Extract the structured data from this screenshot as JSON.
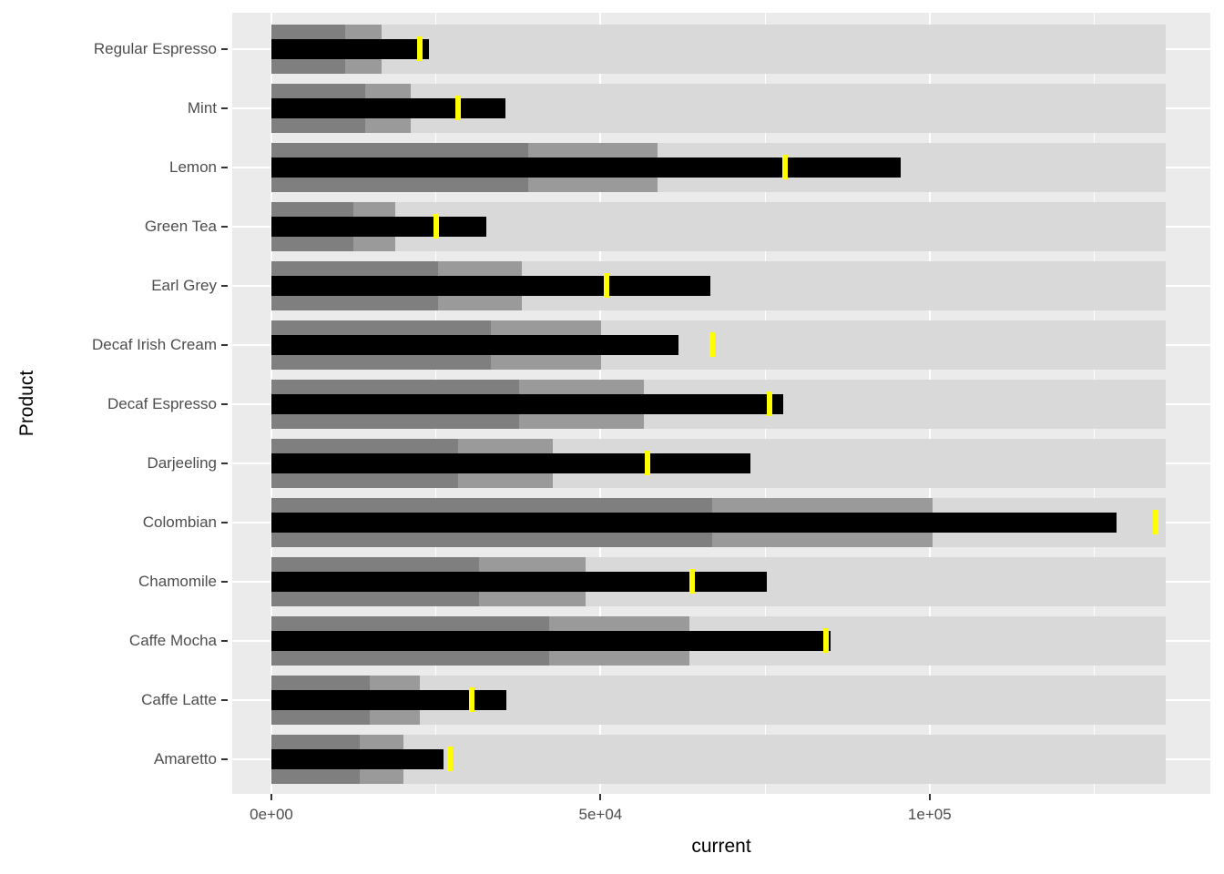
{
  "figure": {
    "kind": "bullet-chart",
    "background": "#ffffff"
  },
  "colors": {
    "panel_bg": "#ebebeb",
    "grid": "#ffffff",
    "range_high_bg": "#d9d9d9",
    "range_mid": "#9a9a9a",
    "range_low": "#7f7f7f",
    "measure_bar": "#000000",
    "target_marker": "#ffff00",
    "axis_tick_label": "#4d4d4d",
    "axis_title": "#000000",
    "tick_mark": "#333333"
  },
  "chart_data": {
    "type": "bar",
    "subtype": "bullet",
    "title": "",
    "xlabel": "current",
    "ylabel": "Product",
    "orientation": "horizontal",
    "grid": "on",
    "legend": "none",
    "xlim": [
      0,
      135800
    ],
    "x_axis": {
      "tick_values": [
        0,
        50000,
        100000
      ],
      "tick_labels": [
        "0e+00",
        "5e+04",
        "1e+05"
      ],
      "minor_tick_values": [
        25000,
        75000,
        125000
      ]
    },
    "categories": [
      "Regular Espresso",
      "Mint",
      "Lemon",
      "Green Tea",
      "Earl Grey",
      "Decaf Irish Cream",
      "Decaf Espresso",
      "Darjeeling",
      "Colombian",
      "Chamomile",
      "Caffe Mocha",
      "Caffe Latte",
      "Amaretto"
    ],
    "series": [
      {
        "name": "qualitative_range_low",
        "color": "#7f7f7f",
        "values": [
          11200,
          14300,
          39000,
          12500,
          25300,
          33300,
          37700,
          28400,
          66900,
          31600,
          42200,
          14900,
          13400
        ]
      },
      {
        "name": "qualitative_range_mid",
        "color": "#9a9a9a",
        "values": [
          16800,
          21100,
          58700,
          18800,
          38100,
          50100,
          56600,
          42800,
          100500,
          47700,
          63500,
          22500,
          20100
        ]
      },
      {
        "name": "qualitative_range_high",
        "color": "#d9d9d9",
        "values": [
          135800,
          135800,
          135800,
          135800,
          135800,
          135800,
          135800,
          135800,
          135800,
          135800,
          135800,
          135800,
          135800
        ]
      },
      {
        "name": "measure_current",
        "color": "#000000",
        "values": [
          23900,
          35500,
          95600,
          32600,
          66700,
          61900,
          77700,
          72800,
          128400,
          75200,
          84900,
          35700,
          26100
        ]
      },
      {
        "name": "target",
        "color": "#ffff00",
        "values": [
          22600,
          28300,
          78000,
          25100,
          50900,
          66900,
          75700,
          57200,
          134400,
          63900,
          84200,
          30500,
          27100
        ]
      }
    ]
  }
}
